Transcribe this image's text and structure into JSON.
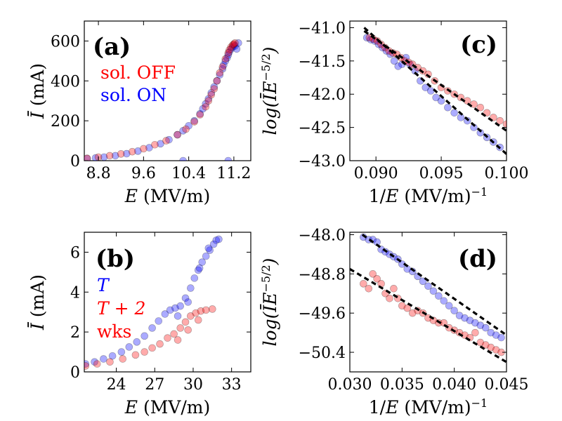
{
  "figure": {
    "colors": {
      "on": "#0000ff",
      "off": "#ff0000",
      "fit": "#000000"
    }
  },
  "chart_data": [
    {
      "id": "a",
      "type": "scatter",
      "panel_label": "(a)",
      "xlabel": "E (MV/m)",
      "ylabel": "Ī (mA)",
      "xlim": [
        8.55,
        11.5
      ],
      "ylim": [
        0,
        700
      ],
      "xticks": [
        8.8,
        9.6,
        10.4,
        11.2
      ],
      "xtick_labels": [
        "8.8",
        "9.6",
        "10.4",
        "11.2"
      ],
      "yticks": [
        0,
        200,
        400,
        600
      ],
      "ytick_labels": [
        "0",
        "200",
        "400",
        "600"
      ],
      "legend": [
        {
          "label": "sol. OFF",
          "color": "#ff0000"
        },
        {
          "label": "sol. ON",
          "color": "#0000ff"
        }
      ],
      "series": [
        {
          "name": "sol. ON",
          "color": "#0000ff",
          "x": [
            8.6,
            8.75,
            8.9,
            9.1,
            9.3,
            9.5,
            9.7,
            9.9,
            10.05,
            10.2,
            10.3,
            10.4,
            10.5,
            10.6,
            10.65,
            10.7,
            10.75,
            10.8,
            10.85,
            10.9,
            10.95,
            11.0,
            11.02,
            11.05,
            11.08,
            11.1,
            11.12,
            11.15,
            11.18,
            11.2,
            11.22,
            11.25,
            11.28,
            10.3,
            11.1
          ],
          "y": [
            10,
            14,
            18,
            25,
            35,
            48,
            65,
            85,
            105,
            130,
            150,
            175,
            200,
            235,
            260,
            285,
            310,
            340,
            370,
            400,
            430,
            460,
            480,
            500,
            515,
            530,
            545,
            560,
            570,
            580,
            575,
            560,
            590,
            0,
            0
          ]
        },
        {
          "name": "sol. OFF",
          "color": "#ff0000",
          "x": [
            8.6,
            8.8,
            9.0,
            9.2,
            9.4,
            9.6,
            9.8,
            10.0,
            10.2,
            10.35,
            10.5,
            10.6,
            10.7,
            10.75,
            10.8,
            10.85,
            10.9,
            10.95,
            11.0,
            11.05,
            11.1,
            11.12,
            11.15,
            11.18,
            11.2,
            11.22
          ],
          "y": [
            12,
            18,
            25,
            34,
            45,
            60,
            80,
            100,
            130,
            158,
            195,
            230,
            270,
            300,
            330,
            360,
            400,
            440,
            470,
            510,
            540,
            555,
            570,
            580,
            585,
            590
          ]
        }
      ]
    },
    {
      "id": "b",
      "type": "scatter",
      "panel_label": "(b)",
      "xlabel": "E (MV/m)",
      "ylabel": "Ī (mA)",
      "xlim": [
        21.5,
        34.5
      ],
      "ylim": [
        0,
        7
      ],
      "xticks": [
        24,
        27,
        30,
        33
      ],
      "xtick_labels": [
        "24",
        "27",
        "30",
        "33"
      ],
      "yticks": [
        0,
        2,
        4,
        6
      ],
      "ytick_labels": [
        "0",
        "2",
        "4",
        "6"
      ],
      "legend": [
        {
          "label": "T",
          "color": "#0000ff"
        },
        {
          "label": "T + 2",
          "color": "#ff0000"
        },
        {
          "label": "wks",
          "color": "#ff0000"
        }
      ],
      "series": [
        {
          "name": "T",
          "color": "#0000ff",
          "x": [
            21.6,
            22.3,
            23,
            23.7,
            24.4,
            25,
            25.6,
            26.2,
            26.8,
            27.3,
            27.8,
            28.2,
            28.6,
            29,
            29.4,
            29.8,
            30.1,
            30.4,
            30.7,
            31,
            31.3,
            31.6,
            31.8,
            32,
            28.8,
            29.6,
            30.5,
            31.2
          ],
          "y": [
            0.4,
            0.5,
            0.65,
            0.8,
            1.0,
            1.25,
            1.5,
            1.8,
            2.2,
            2.55,
            2.9,
            3.1,
            3.2,
            3.3,
            3.7,
            4.2,
            4.7,
            5.1,
            5.5,
            5.8,
            6.1,
            6.4,
            6.6,
            6.65,
            2.8,
            3.5,
            5.2,
            6.2
          ]
        },
        {
          "name": "T + 2",
          "color": "#ff0000",
          "x": [
            21.6,
            22.5,
            23.5,
            24.5,
            25.5,
            26.2,
            26.8,
            27.4,
            28,
            28.5,
            29,
            29.4,
            29.8,
            30.2,
            30.6,
            31,
            31.5,
            28.8,
            29.6,
            30.4
          ],
          "y": [
            0.3,
            0.4,
            0.5,
            0.65,
            0.85,
            1.0,
            1.2,
            1.4,
            1.7,
            1.9,
            2.2,
            2.5,
            2.8,
            2.95,
            3.05,
            3.1,
            3.15,
            1.6,
            2.1,
            2.6
          ]
        }
      ]
    },
    {
      "id": "c",
      "type": "scatter",
      "panel_label": "(c)",
      "xlabel": "1/E (MV/m)^−1",
      "ylabel": "log(ĪE^−5/2)",
      "xlim": [
        0.088,
        0.1
      ],
      "ylim": [
        -43.0,
        -40.9
      ],
      "xticks": [
        0.09,
        0.095,
        0.1
      ],
      "xtick_labels": [
        "0.090",
        "0.095",
        "0.100"
      ],
      "yticks": [
        -41.0,
        -41.5,
        -42.0,
        -42.5,
        -43.0
      ],
      "ytick_labels": [
        "−41.0",
        "−41.5",
        "−42.0",
        "−42.5",
        "−43.0"
      ],
      "series": [
        {
          "name": "sol. ON",
          "color": "#0000ff",
          "x": [
            0.0893,
            0.0896,
            0.0899,
            0.0902,
            0.0905,
            0.0908,
            0.0911,
            0.0914,
            0.0917,
            0.092,
            0.0923,
            0.0926,
            0.093,
            0.0934,
            0.0938,
            0.0942,
            0.0946,
            0.095,
            0.0955,
            0.096,
            0.0965,
            0.097,
            0.0975,
            0.098,
            0.0985,
            0.099,
            0.0995
          ],
          "y": [
            -41.15,
            -41.18,
            -41.2,
            -41.25,
            -41.3,
            -41.35,
            -41.4,
            -41.5,
            -41.58,
            -41.55,
            -41.45,
            -41.55,
            -41.65,
            -41.8,
            -41.9,
            -41.95,
            -42.05,
            -42.1,
            -42.2,
            -42.28,
            -42.35,
            -42.4,
            -42.5,
            -42.58,
            -42.65,
            -42.72,
            -42.8
          ]
        },
        {
          "name": "sol. OFF",
          "color": "#ff0000",
          "x": [
            0.0895,
            0.0898,
            0.0901,
            0.0904,
            0.0907,
            0.091,
            0.0913,
            0.0916,
            0.0919,
            0.0922,
            0.0925,
            0.0928,
            0.0932,
            0.0936,
            0.094,
            0.0945,
            0.095,
            0.0955,
            0.096,
            0.0965,
            0.097,
            0.0975,
            0.098,
            0.0985,
            0.099,
            0.0995,
            0.1
          ],
          "y": [
            -41.15,
            -41.17,
            -41.2,
            -41.25,
            -41.3,
            -41.35,
            -41.38,
            -41.4,
            -41.45,
            -41.5,
            -41.52,
            -41.55,
            -41.6,
            -41.65,
            -41.7,
            -41.8,
            -41.9,
            -41.95,
            -42.0,
            -42.05,
            -42.1,
            -42.15,
            -42.2,
            -42.28,
            -42.35,
            -42.4,
            -42.45
          ]
        }
      ],
      "fits": [
        {
          "x": [
            0.0891,
            0.1
          ],
          "y": [
            -41.0,
            -42.9
          ]
        },
        {
          "x": [
            0.0891,
            0.1
          ],
          "y": [
            -41.05,
            -42.55
          ]
        }
      ]
    },
    {
      "id": "d",
      "type": "scatter",
      "panel_label": "(d)",
      "xlabel": "1/E (MV/m)^−1",
      "ylabel": "log(ĪE^−5/2)",
      "xlim": [
        0.03,
        0.045
      ],
      "ylim": [
        -50.8,
        -47.95
      ],
      "xticks": [
        0.03,
        0.035,
        0.04,
        0.045
      ],
      "xtick_labels": [
        "0.030",
        "0.035",
        "0.040",
        "0.045"
      ],
      "yticks": [
        -48.0,
        -48.8,
        -49.6,
        -50.4
      ],
      "ytick_labels": [
        "−48.0",
        "−48.8",
        "−49.6",
        "−50.4"
      ],
      "series": [
        {
          "name": "T",
          "color": "#0000ff",
          "x": [
            0.0313,
            0.0318,
            0.0322,
            0.0326,
            0.033,
            0.0334,
            0.0338,
            0.0342,
            0.0346,
            0.035,
            0.0355,
            0.036,
            0.0365,
            0.037,
            0.0375,
            0.038,
            0.0385,
            0.039,
            0.0395,
            0.04,
            0.0405,
            0.041,
            0.0415,
            0.042,
            0.0425,
            0.043,
            0.0435,
            0.044,
            0.0445
          ],
          "y": [
            -48.05,
            -48.1,
            -48.1,
            -48.15,
            -48.3,
            -48.35,
            -48.4,
            -48.45,
            -48.5,
            -48.6,
            -48.7,
            -48.75,
            -48.85,
            -48.95,
            -49.05,
            -49.15,
            -49.25,
            -49.35,
            -49.45,
            -49.55,
            -49.65,
            -49.7,
            -49.75,
            -49.8,
            -49.85,
            -49.9,
            -50.0,
            -50.05,
            -50.1
          ]
        },
        {
          "name": "T + 2",
          "color": "#ff0000",
          "x": [
            0.0313,
            0.0318,
            0.0322,
            0.0326,
            0.033,
            0.0334,
            0.0338,
            0.0342,
            0.0346,
            0.035,
            0.0355,
            0.036,
            0.0365,
            0.037,
            0.0375,
            0.038,
            0.0385,
            0.039,
            0.0395,
            0.04,
            0.0405,
            0.041,
            0.0415,
            0.042,
            0.0425,
            0.043,
            0.0435,
            0.044,
            0.0445
          ],
          "y": [
            -49.0,
            -49.1,
            -48.8,
            -48.9,
            -49.0,
            -49.2,
            -49.3,
            -49.1,
            -49.3,
            -49.45,
            -49.5,
            -49.6,
            -49.55,
            -49.6,
            -49.7,
            -49.75,
            -49.8,
            -49.8,
            -49.9,
            -49.95,
            -50.0,
            -50.05,
            -50.1,
            -50.0,
            -50.2,
            -50.25,
            -50.3,
            -50.35,
            -50.4
          ]
        }
      ],
      "fits": [
        {
          "x": [
            0.0312,
            0.045
          ],
          "y": [
            -48.0,
            -50.05
          ]
        },
        {
          "x": [
            0.03,
            0.045
          ],
          "y": [
            -48.7,
            -50.6
          ]
        }
      ]
    }
  ]
}
